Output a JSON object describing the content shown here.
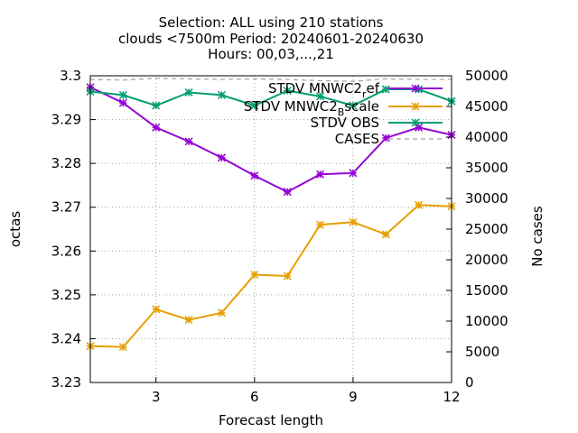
{
  "title_lines": [
    "Selection: ALL using   210 stations",
    "clouds <7500m   Period: 20240601-20240630",
    "Hours: 00,03,...,21"
  ],
  "chart_data": {
    "type": "line",
    "xlabel": "Forecast length",
    "ylabel": "octas",
    "y2label": "No cases",
    "xlim": [
      1,
      12
    ],
    "ylim": [
      3.23,
      3.3
    ],
    "y2lim": [
      0,
      50000
    ],
    "x_ticks": [
      3,
      6,
      9,
      12
    ],
    "y_ticks": [
      "3.23",
      "3.24",
      "3.25",
      "3.26",
      "3.27",
      "3.28",
      "3.29",
      "3.3"
    ],
    "y2_ticks": [
      "0",
      "5000",
      "10000",
      "15000",
      "20000",
      "25000",
      "30000",
      "35000",
      "40000",
      "45000",
      "50000"
    ],
    "grid": true,
    "legend_position": "top-right",
    "x": [
      1,
      2,
      3,
      4,
      5,
      6,
      7,
      8,
      9,
      10,
      11,
      12
    ],
    "series": [
      {
        "name": "STDV MNWC2_ref",
        "legend_text": "STDV MNWC2",
        "legend_sub": "r",
        "legend_tail": "ef",
        "color": "#9400d3",
        "axis": "y",
        "values": [
          3.2974,
          3.2938,
          3.2882,
          3.285,
          3.2813,
          3.2772,
          3.2735,
          3.2775,
          3.2778,
          3.2858,
          3.2882,
          3.2865
        ]
      },
      {
        "name": "STDV MNWC2_Bscale",
        "legend_text": "STDV MNWC2",
        "legend_sub": "B",
        "legend_tail": "scale",
        "color": "#e69f00",
        "axis": "y",
        "values": [
          3.2383,
          3.2381,
          3.2467,
          3.2443,
          3.2459,
          3.2546,
          3.2543,
          3.266,
          3.2666,
          3.2638,
          3.2705,
          3.2702
        ]
      },
      {
        "name": "STDV OBS",
        "legend_text": "STDV OBS",
        "legend_sub": "",
        "legend_tail": "",
        "color": "#009e73",
        "axis": "y",
        "values": [
          3.2964,
          3.2956,
          3.2932,
          3.2962,
          3.2956,
          3.2932,
          3.2966,
          3.2953,
          3.2932,
          3.2969,
          3.2969,
          3.2942
        ]
      },
      {
        "name": "CASES",
        "legend_text": "CASES",
        "legend_sub": "",
        "legend_tail": "",
        "color": "#a0a0a0",
        "axis": "y2",
        "values": [
          49400,
          49300,
          49600,
          49500,
          49400,
          49500,
          49400,
          49200,
          49100,
          49500,
          49400,
          49400
        ]
      }
    ]
  }
}
